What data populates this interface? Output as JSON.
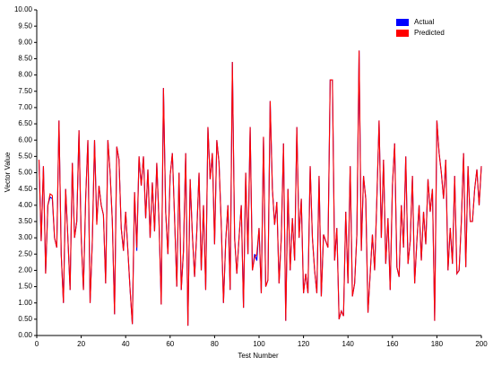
{
  "chart_data": {
    "type": "line",
    "xlabel": "Test Number",
    "ylabel": "Vector Value",
    "x": [
      1,
      2,
      3,
      4,
      5,
      6,
      7,
      8,
      9,
      10,
      11,
      12,
      13,
      14,
      15,
      16,
      17,
      18,
      19,
      20,
      21,
      22,
      23,
      24,
      25,
      26,
      27,
      28,
      29,
      30,
      31,
      32,
      33,
      34,
      35,
      36,
      37,
      38,
      39,
      40,
      41,
      42,
      43,
      44,
      45,
      46,
      47,
      48,
      49,
      50,
      51,
      52,
      53,
      54,
      55,
      56,
      57,
      58,
      59,
      60,
      61,
      62,
      63,
      64,
      65,
      66,
      67,
      68,
      69,
      70,
      71,
      72,
      73,
      74,
      75,
      76,
      77,
      78,
      79,
      80,
      81,
      82,
      83,
      84,
      85,
      86,
      87,
      88,
      89,
      90,
      91,
      92,
      93,
      94,
      95,
      96,
      97,
      98,
      99,
      100,
      101,
      102,
      103,
      104,
      105,
      106,
      107,
      108,
      109,
      110,
      111,
      112,
      113,
      114,
      115,
      116,
      117,
      118,
      119,
      120,
      121,
      122,
      123,
      124,
      125,
      126,
      127,
      128,
      129,
      130,
      131,
      132,
      133,
      134,
      135,
      136,
      137,
      138,
      139,
      140,
      141,
      142,
      143,
      144,
      145,
      146,
      147,
      148,
      149,
      150,
      151,
      152,
      153,
      154,
      155,
      156,
      157,
      158,
      159,
      160,
      161,
      162,
      163,
      164,
      165,
      166,
      167,
      168,
      169,
      170,
      171,
      172,
      173,
      174,
      175,
      176,
      177,
      178,
      179,
      180,
      181,
      182,
      183,
      184,
      185,
      186,
      187,
      188,
      189,
      190,
      191,
      192,
      193,
      194,
      195,
      196,
      197,
      198,
      199,
      200
    ],
    "series": [
      {
        "name": "Actual",
        "color": "#0000ff",
        "values": [
          5.4,
          2.9,
          5.2,
          1.9,
          4.0,
          4.25,
          4.2,
          3.0,
          2.7,
          6.6,
          2.5,
          1.0,
          4.5,
          3.0,
          1.4,
          5.3,
          3.0,
          3.5,
          6.3,
          3.0,
          1.4,
          4.2,
          6.0,
          1.0,
          2.9,
          6.0,
          3.5,
          4.6,
          4.0,
          3.7,
          1.6,
          6.0,
          5.0,
          3.5,
          0.65,
          5.8,
          5.4,
          3.3,
          2.6,
          3.8,
          2.6,
          1.4,
          0.35,
          4.4,
          2.6,
          5.5,
          4.6,
          5.5,
          3.6,
          5.1,
          3.0,
          4.7,
          3.2,
          5.3,
          3.5,
          0.95,
          7.6,
          3.8,
          2.5,
          4.9,
          5.6,
          3.6,
          1.5,
          5.0,
          1.4,
          2.6,
          5.6,
          0.3,
          4.8,
          3.1,
          1.8,
          3.2,
          5.0,
          2.0,
          4.0,
          1.4,
          6.4,
          4.8,
          5.6,
          2.8,
          6.0,
          5.3,
          3.4,
          1.0,
          2.9,
          4.0,
          1.4,
          8.4,
          3.0,
          1.9,
          3.0,
          4.0,
          0.85,
          5.0,
          2.5,
          6.4,
          2.0,
          2.5,
          2.3,
          3.3,
          1.3,
          6.1,
          1.5,
          1.7,
          7.2,
          4.5,
          3.4,
          4.1,
          1.6,
          3.0,
          5.9,
          0.45,
          4.5,
          2.0,
          3.6,
          2.3,
          6.4,
          3.0,
          4.2,
          1.3,
          1.9,
          1.3,
          5.2,
          3.0,
          2.0,
          1.3,
          4.9,
          1.2,
          3.1,
          2.9,
          2.7,
          7.85,
          7.85,
          2.3,
          3.3,
          0.5,
          0.75,
          0.6,
          3.8,
          1.6,
          5.2,
          1.2,
          1.6,
          3.1,
          8.75,
          2.6,
          4.9,
          4.2,
          0.7,
          1.9,
          3.1,
          2.0,
          4.2,
          6.6,
          3.0,
          5.4,
          2.2,
          3.6,
          1.4,
          4.6,
          5.9,
          2.1,
          1.8,
          4.0,
          2.7,
          5.5,
          2.2,
          2.9,
          4.9,
          1.6,
          2.9,
          4.0,
          2.3,
          3.8,
          2.8,
          4.8,
          3.8,
          4.5,
          0.45,
          6.6,
          5.6,
          5.0,
          4.2,
          5.4,
          2.0,
          3.3,
          2.2,
          4.9,
          1.9,
          2.0,
          3.5,
          5.6,
          2.1,
          5.2,
          3.5,
          3.5,
          4.5,
          5.1,
          4.0,
          5.2
        ]
      },
      {
        "name": "Predicted",
        "color": "#ff0000",
        "values": [
          5.4,
          2.9,
          5.2,
          1.9,
          4.0,
          4.35,
          4.3,
          3.0,
          2.7,
          6.6,
          2.5,
          1.0,
          4.5,
          3.0,
          1.4,
          5.3,
          3.0,
          3.5,
          6.3,
          3.0,
          1.4,
          4.2,
          6.0,
          1.0,
          2.9,
          6.0,
          3.4,
          4.6,
          4.0,
          3.7,
          1.6,
          6.0,
          5.0,
          3.5,
          0.65,
          5.8,
          5.4,
          3.3,
          2.6,
          3.8,
          2.6,
          1.4,
          0.35,
          4.4,
          2.7,
          5.5,
          4.6,
          5.5,
          3.6,
          5.1,
          3.0,
          4.7,
          3.2,
          5.3,
          3.5,
          0.95,
          7.6,
          3.8,
          2.5,
          4.9,
          5.6,
          3.6,
          1.5,
          5.0,
          1.4,
          2.6,
          5.6,
          0.3,
          4.8,
          3.1,
          1.8,
          3.2,
          5.0,
          2.0,
          4.0,
          1.4,
          6.4,
          4.8,
          5.6,
          2.8,
          6.0,
          5.3,
          3.4,
          1.0,
          2.9,
          4.0,
          1.4,
          8.4,
          3.0,
          1.9,
          3.0,
          4.0,
          0.85,
          5.0,
          2.5,
          6.4,
          2.0,
          2.4,
          2.5,
          3.3,
          1.3,
          6.1,
          1.5,
          1.7,
          7.2,
          4.5,
          3.4,
          4.1,
          1.6,
          3.0,
          5.9,
          0.45,
          4.5,
          2.0,
          3.6,
          2.3,
          6.4,
          3.0,
          4.2,
          1.3,
          1.9,
          1.3,
          5.2,
          3.0,
          2.0,
          1.3,
          4.9,
          1.2,
          3.1,
          2.9,
          2.7,
          7.85,
          7.85,
          2.3,
          3.3,
          0.5,
          0.75,
          0.6,
          3.8,
          1.6,
          5.2,
          1.2,
          1.6,
          3.1,
          8.75,
          2.6,
          4.9,
          4.2,
          0.7,
          1.9,
          3.1,
          2.0,
          4.2,
          6.6,
          3.0,
          5.4,
          2.2,
          3.6,
          1.4,
          4.6,
          5.9,
          2.1,
          1.8,
          4.0,
          2.7,
          5.5,
          2.2,
          2.9,
          4.9,
          1.6,
          2.9,
          4.0,
          2.3,
          3.8,
          2.8,
          4.8,
          3.8,
          4.5,
          0.45,
          6.6,
          5.6,
          5.0,
          4.2,
          5.4,
          2.0,
          3.3,
          2.2,
          4.9,
          1.9,
          2.0,
          3.5,
          5.6,
          2.1,
          5.2,
          3.5,
          3.5,
          4.5,
          5.1,
          4.0,
          5.2
        ]
      }
    ],
    "xlim": [
      0,
      200
    ],
    "xticks": [
      0,
      20,
      40,
      60,
      80,
      100,
      120,
      140,
      160,
      180,
      200
    ],
    "ylim": [
      0,
      10
    ],
    "yticks": [
      {
        "value": 0,
        "label": "0.00"
      },
      {
        "value": 0.5,
        "label": "0.50"
      },
      {
        "value": 1,
        "label": "1.00"
      },
      {
        "value": 1.5,
        "label": "1.50"
      },
      {
        "value": 2,
        "label": "2.00"
      },
      {
        "value": 2.5,
        "label": "2.50"
      },
      {
        "value": 3,
        "label": "3.00"
      },
      {
        "value": 3.5,
        "label": "3.50"
      },
      {
        "value": 4,
        "label": "4.00"
      },
      {
        "value": 4.5,
        "label": "4.50"
      },
      {
        "value": 5,
        "label": "5.00"
      },
      {
        "value": 5.5,
        "label": "5.50"
      },
      {
        "value": 6,
        "label": "6.00"
      },
      {
        "value": 6.5,
        "label": "6.50"
      },
      {
        "value": 7,
        "label": "7.00"
      },
      {
        "value": 7.5,
        "label": "7.50"
      },
      {
        "value": 8,
        "label": "8.00"
      },
      {
        "value": 8.5,
        "label": "8.50"
      },
      {
        "value": 9,
        "label": "9.00"
      },
      {
        "value": 9.5,
        "label": "9.50"
      },
      {
        "value": 10,
        "label": "10.00"
      }
    ],
    "legend": "upper right"
  }
}
